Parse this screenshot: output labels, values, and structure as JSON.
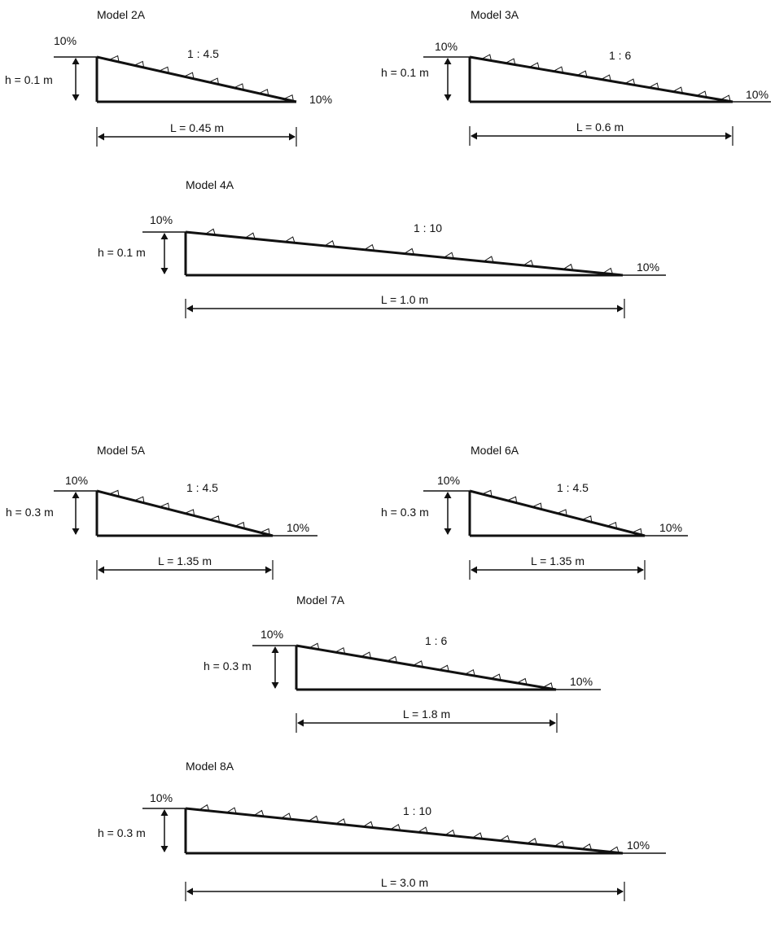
{
  "colors": {
    "line": "#111111",
    "background": "#ffffff"
  },
  "models": [
    {
      "title": "Model 2A",
      "slope_label": "1 : 4.5",
      "h_label": "h = 0.1 m",
      "L_label": "L = 0.45 m",
      "left_percent": "10%",
      "right_percent": "10%",
      "h_m": 0.1,
      "L_m": 0.45,
      "slope_ratio": 4.5,
      "markers": 8
    },
    {
      "title": "Model 3A",
      "slope_label": "1 : 6",
      "h_label": "h = 0.1 m",
      "L_label": "L = 0.6 m",
      "left_percent": "10%",
      "right_percent": "10%",
      "h_m": 0.1,
      "L_m": 0.6,
      "slope_ratio": 6,
      "markers": 11
    },
    {
      "title": "Model 4A",
      "slope_label": "1 : 10",
      "h_label": "h = 0.1 m",
      "L_label": "L = 1.0 m",
      "left_percent": "10%",
      "right_percent": "10%",
      "h_m": 0.1,
      "L_m": 1.0,
      "slope_ratio": 10,
      "markers": 11
    },
    {
      "title": "Model 5A",
      "slope_label": "1 : 4.5",
      "h_label": "h = 0.3 m",
      "L_label": "L = 1.35 m",
      "left_percent": "10%",
      "right_percent": "10%",
      "h_m": 0.3,
      "L_m": 1.35,
      "slope_ratio": 4.5,
      "markers": 7
    },
    {
      "title": "Model 6A",
      "slope_label": "1 : 4.5",
      "h_label": "h = 0.3 m",
      "L_label": "L = 1.35 m",
      "left_percent": "10%",
      "right_percent": "10%",
      "h_m": 0.3,
      "L_m": 1.35,
      "slope_ratio": 4.5,
      "markers": 7
    },
    {
      "title": "Model 7A",
      "slope_label": "1 : 6",
      "h_label": "h = 0.3 m",
      "L_label": "L = 1.8 m",
      "left_percent": "10%",
      "right_percent": "10%",
      "h_m": 0.3,
      "L_m": 1.8,
      "slope_ratio": 6,
      "markers": 10
    },
    {
      "title": "Model 8A",
      "slope_label": "1 : 10",
      "h_label": "h = 0.3 m",
      "L_label": "L = 3.0 m",
      "left_percent": "10%",
      "right_percent": "10%",
      "h_m": 0.3,
      "L_m": 3.0,
      "slope_ratio": 10,
      "markers": 16
    }
  ]
}
